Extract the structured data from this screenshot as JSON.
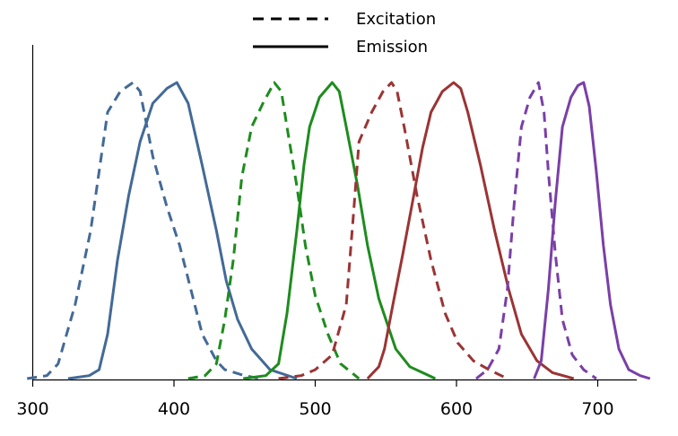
{
  "chart_data": {
    "type": "line",
    "title": "",
    "xlabel": "",
    "ylabel": "",
    "xlim": [
      300,
      729
    ],
    "ylim": [
      0,
      1
    ],
    "x_ticks": [
      "300",
      "400",
      "500",
      "600",
      "700"
    ],
    "y_ticks": [],
    "grid": false,
    "legend": {
      "placement": "top-center",
      "entries": [
        {
          "label": "Excitation",
          "style": "dashed"
        },
        {
          "label": "Emission",
          "style": "solid"
        }
      ]
    },
    "series": [
      {
        "group": "blue",
        "style": "dashed",
        "color": "#436a97",
        "x": [
          296,
          310,
          318,
          330,
          341,
          353,
          362,
          371,
          376,
          385,
          395,
          404,
          412,
          420,
          430,
          436,
          450,
          461
        ],
        "y": [
          0.0,
          0.01,
          0.05,
          0.25,
          0.5,
          0.9,
          0.97,
          1.0,
          0.97,
          0.75,
          0.58,
          0.45,
          0.3,
          0.15,
          0.06,
          0.03,
          0.01,
          0.0
        ]
      },
      {
        "group": "blue",
        "style": "solid",
        "color": "#436a97",
        "x": [
          325,
          340,
          347,
          353,
          360,
          368,
          376,
          385,
          395,
          402,
          410,
          420,
          430,
          437,
          445,
          455,
          468,
          487
        ],
        "y": [
          0.0,
          0.01,
          0.03,
          0.15,
          0.4,
          0.62,
          0.8,
          0.93,
          0.98,
          1.0,
          0.93,
          0.72,
          0.5,
          0.33,
          0.2,
          0.1,
          0.03,
          0.0
        ]
      },
      {
        "group": "green",
        "style": "dashed",
        "color": "#1e8c1e",
        "x": [
          410,
          422,
          430,
          436,
          442,
          448,
          455,
          463,
          471,
          476,
          480,
          487,
          493,
          500,
          509,
          518,
          531
        ],
        "y": [
          0.0,
          0.01,
          0.05,
          0.2,
          0.4,
          0.68,
          0.85,
          0.93,
          1.0,
          0.97,
          0.85,
          0.65,
          0.45,
          0.28,
          0.15,
          0.05,
          0.0
        ]
      },
      {
        "group": "green",
        "style": "solid",
        "color": "#1e8c1e",
        "x": [
          449,
          465,
          474,
          480,
          487,
          492,
          496,
          503,
          512,
          517,
          522,
          530,
          537,
          545,
          557,
          567,
          576,
          585
        ],
        "y": [
          0.0,
          0.01,
          0.05,
          0.22,
          0.5,
          0.72,
          0.85,
          0.95,
          1.0,
          0.97,
          0.85,
          0.65,
          0.45,
          0.27,
          0.1,
          0.04,
          0.02,
          0.0
        ]
      },
      {
        "group": "red",
        "style": "dashed",
        "color": "#9b3434",
        "x": [
          474,
          490,
          500,
          512,
          522,
          527,
          531,
          540,
          548,
          554,
          558,
          563,
          572,
          582,
          592,
          601,
          612,
          623,
          636
        ],
        "y": [
          0.0,
          0.01,
          0.03,
          0.08,
          0.25,
          0.55,
          0.8,
          0.9,
          0.97,
          1.0,
          0.97,
          0.85,
          0.62,
          0.4,
          0.22,
          0.12,
          0.06,
          0.03,
          0.0
        ]
      },
      {
        "group": "red",
        "style": "solid",
        "color": "#9b3434",
        "x": [
          537,
          545,
          549,
          555,
          562,
          569,
          576,
          582,
          590,
          598,
          603,
          608,
          617,
          627,
          637,
          646,
          657,
          668,
          683
        ],
        "y": [
          0.0,
          0.04,
          0.1,
          0.25,
          0.42,
          0.6,
          0.78,
          0.9,
          0.97,
          1.0,
          0.98,
          0.9,
          0.72,
          0.5,
          0.3,
          0.15,
          0.06,
          0.02,
          0.0
        ]
      },
      {
        "group": "purple",
        "style": "dashed",
        "color": "#7a3fa8",
        "x": [
          614,
          622,
          630,
          636,
          641,
          646,
          652,
          658,
          662,
          665,
          670,
          675,
          682,
          690,
          699
        ],
        "y": [
          0.0,
          0.03,
          0.1,
          0.3,
          0.6,
          0.85,
          0.95,
          1.0,
          0.9,
          0.7,
          0.42,
          0.2,
          0.08,
          0.03,
          0.0
        ]
      },
      {
        "group": "purple",
        "style": "solid",
        "color": "#7a3fa8",
        "x": [
          655,
          660,
          665,
          670,
          675,
          681,
          686,
          690,
          694,
          699,
          704,
          709,
          715,
          722,
          730,
          737
        ],
        "y": [
          0.0,
          0.06,
          0.3,
          0.6,
          0.85,
          0.95,
          0.99,
          1.0,
          0.92,
          0.7,
          0.45,
          0.25,
          0.1,
          0.03,
          0.01,
          0.0
        ]
      }
    ]
  }
}
